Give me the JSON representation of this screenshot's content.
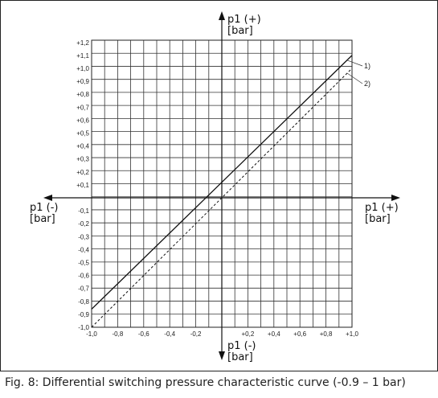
{
  "caption": "Fig. 8: Differential switching pressure characteristic curve (-0.9 – 1 bar)",
  "chart_data": {
    "type": "line",
    "title": "",
    "axes": {
      "top": {
        "label": "p1 (+)",
        "unit": "[bar]"
      },
      "bottom": {
        "label": "p1 (-)",
        "unit": "[bar]"
      },
      "left": {
        "label": "p1 (-)",
        "unit": "[bar]"
      },
      "right": {
        "label": "p1 (+)",
        "unit": "[bar]"
      }
    },
    "xlim": [
      -1.0,
      1.0
    ],
    "ylim": [
      -1.0,
      1.2
    ],
    "grid": true,
    "x_ticks": [
      {
        "value": -1.0,
        "label": "-1,0"
      },
      {
        "value": -0.8,
        "label": "-0,8"
      },
      {
        "value": -0.6,
        "label": "-0,6"
      },
      {
        "value": -0.4,
        "label": "-0,4"
      },
      {
        "value": -0.2,
        "label": "-0,2"
      },
      {
        "value": 0.2,
        "label": "+0,2"
      },
      {
        "value": 0.4,
        "label": "+0,4"
      },
      {
        "value": 0.6,
        "label": "+0,6"
      },
      {
        "value": 0.8,
        "label": "+0,8"
      },
      {
        "value": 1.0,
        "label": "+1,0"
      }
    ],
    "y_ticks": [
      {
        "value": 1.2,
        "label": "+1,2"
      },
      {
        "value": 1.1,
        "label": "+1,1"
      },
      {
        "value": 1.0,
        "label": "+1,0"
      },
      {
        "value": 0.9,
        "label": "+0,9"
      },
      {
        "value": 0.8,
        "label": "+0,8"
      },
      {
        "value": 0.7,
        "label": "+0,7"
      },
      {
        "value": 0.6,
        "label": "+0,6"
      },
      {
        "value": 0.5,
        "label": "+0,5"
      },
      {
        "value": 0.4,
        "label": "+0,4"
      },
      {
        "value": 0.3,
        "label": "+0,3"
      },
      {
        "value": 0.2,
        "label": "+0,2"
      },
      {
        "value": 0.1,
        "label": "+0,1"
      },
      {
        "value": -0.1,
        "label": "-0,1"
      },
      {
        "value": -0.2,
        "label": "-0,2"
      },
      {
        "value": -0.3,
        "label": "-0,3"
      },
      {
        "value": -0.4,
        "label": "-0,4"
      },
      {
        "value": -0.5,
        "label": "-0,5"
      },
      {
        "value": -0.6,
        "label": "-0,6"
      },
      {
        "value": -0.7,
        "label": "-0,7"
      },
      {
        "value": -0.8,
        "label": "-0,8"
      },
      {
        "value": -0.9,
        "label": "-0,9"
      },
      {
        "value": -1.0,
        "label": "-1,0"
      }
    ],
    "series": [
      {
        "name": "1)",
        "style": "solid",
        "x": [
          -1.0,
          1.0
        ],
        "y": [
          -0.86,
          1.1
        ]
      },
      {
        "name": "2)",
        "style": "dashed",
        "x": [
          -1.0,
          1.0
        ],
        "y": [
          -1.0,
          1.0
        ]
      }
    ]
  }
}
